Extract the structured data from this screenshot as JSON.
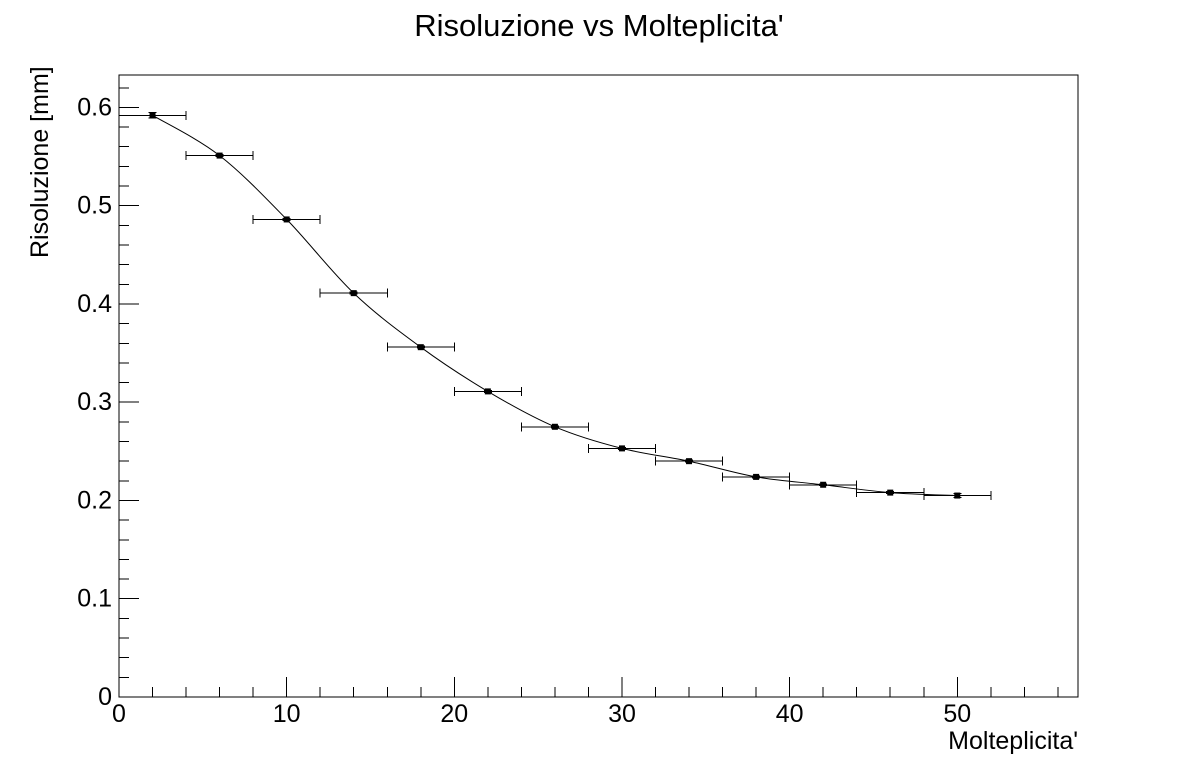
{
  "chart_data": {
    "type": "line",
    "title": "Risoluzione vs Molteplicita'",
    "xlabel": "Molteplicita'",
    "ylabel": "Risoluzione [mm]",
    "xlim": [
      0,
      57.2
    ],
    "ylim": [
      0,
      0.633
    ],
    "x_major_ticks": [
      0,
      10,
      20,
      30,
      40,
      50
    ],
    "x_minor_step": 2,
    "y_major_ticks": [
      0,
      0.1,
      0.2,
      0.3,
      0.4,
      0.5,
      0.6
    ],
    "y_minor_step": 0.02,
    "grid": false,
    "legend": false,
    "marker": "filled-square",
    "line_style": "smooth-curve",
    "error_bars": "horizontal-and-vertical-with-caps",
    "colors": {
      "foreground": "#000000",
      "background": "#ffffff"
    },
    "points": [
      {
        "x": 2,
        "y": 0.592,
        "ex": 2,
        "ey": 0.003
      },
      {
        "x": 6,
        "y": 0.551,
        "ex": 2,
        "ey": 0.001
      },
      {
        "x": 10,
        "y": 0.486,
        "ex": 2,
        "ey": 0.001
      },
      {
        "x": 14,
        "y": 0.411,
        "ex": 2,
        "ey": 0.001
      },
      {
        "x": 18,
        "y": 0.356,
        "ex": 2,
        "ey": 0.001
      },
      {
        "x": 22,
        "y": 0.311,
        "ex": 2,
        "ey": 0.001
      },
      {
        "x": 26,
        "y": 0.275,
        "ex": 2,
        "ey": 0.001
      },
      {
        "x": 30,
        "y": 0.253,
        "ex": 2,
        "ey": 0.001
      },
      {
        "x": 34,
        "y": 0.24,
        "ex": 2,
        "ey": 0.001
      },
      {
        "x": 38,
        "y": 0.224,
        "ex": 2,
        "ey": 0.001
      },
      {
        "x": 42,
        "y": 0.216,
        "ex": 2,
        "ey": 0.001
      },
      {
        "x": 46,
        "y": 0.208,
        "ex": 2,
        "ey": 0.001
      },
      {
        "x": 50,
        "y": 0.205,
        "ex": 2,
        "ey": 0.002
      }
    ]
  }
}
